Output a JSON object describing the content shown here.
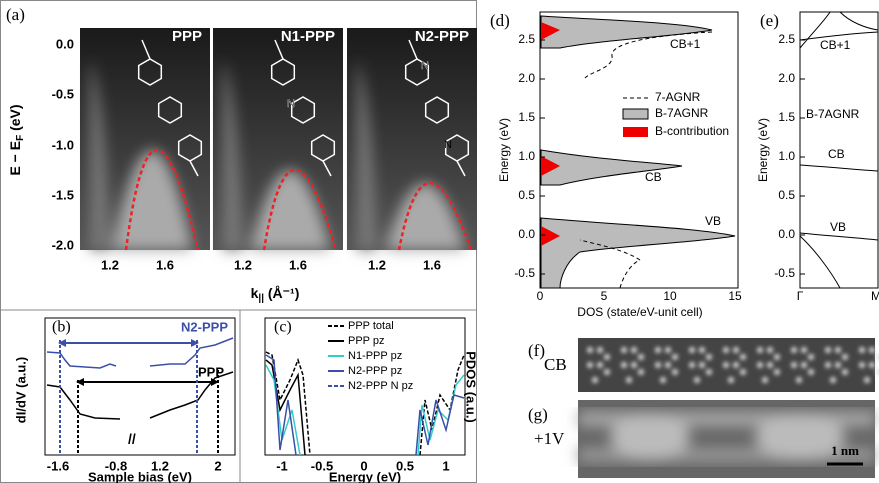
{
  "panel_a": {
    "label": "(a)",
    "titles": [
      "PPP",
      "N1-PPP",
      "N2-PPP"
    ],
    "yticks": [
      "0.0",
      "-0.5",
      "-1.0",
      "-1.5",
      "-2.0"
    ],
    "xticks": [
      "1.2",
      "1.6"
    ],
    "ylabel": {
      "text": "E − E",
      "sub": "F",
      "unit": " (eV)"
    },
    "xlabel": {
      "text": "k",
      "sub": "||",
      "unit": " (Å⁻¹)"
    },
    "atom": "N"
  },
  "panel_b": {
    "label": "(b)",
    "series": [
      "N2-PPP",
      "PPP"
    ],
    "xticks": [
      "-1.6",
      "-0.8",
      "1.2",
      "2"
    ],
    "xlabel": "Sample bias (eV)",
    "ylabel": "dI/dV (a.u.)"
  },
  "panel_c": {
    "label": "(c)",
    "legend": [
      "PPP total",
      "PPP pz",
      "N1-PPP pz",
      "N2-PPP pz",
      "N2-PPP N pz"
    ],
    "xticks": [
      "-1",
      "-0.5",
      "0",
      "0.5",
      "1"
    ],
    "xlabel": "Energy (eV)",
    "ylabel": "PDOS (a.u.)"
  },
  "panel_d": {
    "label": "(d)",
    "yticks": [
      "2.5",
      "2.0",
      "1.5",
      "1.0",
      "0.5",
      "0.0",
      "-0.5"
    ],
    "xticks": [
      "0",
      "5",
      "10",
      "15"
    ],
    "ylabel": "Energy (eV)",
    "xlabel": "DOS (state/eV-unit cell)",
    "legend": [
      "7-AGNR",
      "B-7AGNR",
      "B-contribution"
    ],
    "bands": [
      "CB+1",
      "CB",
      "VB"
    ]
  },
  "panel_e": {
    "label": "(e)",
    "yticks": [
      "2.5",
      "2.0",
      "1.5",
      "1.0",
      "0.5",
      "0.0",
      "-0.5"
    ],
    "xticks": [
      "Γ",
      "M"
    ],
    "ylabel": "Energy (eV)",
    "ribbon": "B-7AGNR",
    "bands": [
      "CB+1",
      "CB",
      "VB"
    ]
  },
  "panel_f": {
    "label": "(f)",
    "state": "CB"
  },
  "panel_g": {
    "label": "(g)",
    "bias": "+1V",
    "scale_bar": "1 nm"
  }
}
